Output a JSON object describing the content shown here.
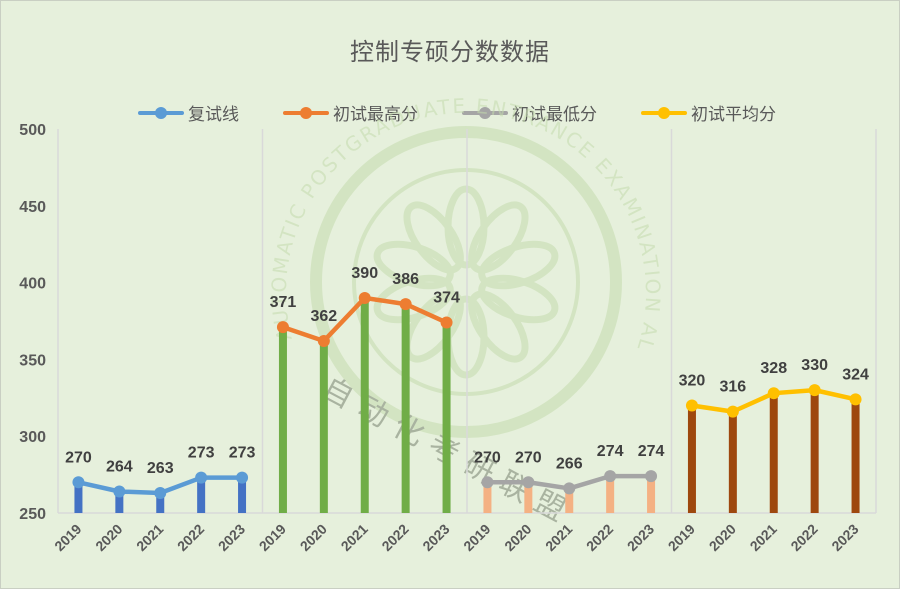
{
  "title": "控制专硕分数数据",
  "legend": [
    {
      "label": "复试线",
      "color": "#5b9bd5"
    },
    {
      "label": "初试最高分",
      "color": "#ed7d31"
    },
    {
      "label": "初试最低分",
      "color": "#a5a5a5"
    },
    {
      "label": "初试平均分",
      "color": "#ffc000"
    }
  ],
  "watermark": {
    "arc_text": "AUTOMATIC POSTGRADUATE ENTRANCE EXAMINATION ALLIANCE",
    "cn_text": "自动化考研联盟"
  },
  "chart_data": {
    "type": "line",
    "title": "控制专硕分数数据",
    "xlabel": "",
    "ylabel": "",
    "ylim": [
      250,
      500
    ],
    "yticks": [
      250,
      300,
      350,
      400,
      450,
      500
    ],
    "grid": false,
    "legend_position": "top",
    "categories": [
      "2019",
      "2020",
      "2021",
      "2022",
      "2023"
    ],
    "series": [
      {
        "name": "复试线",
        "values": [
          270,
          264,
          263,
          273,
          273
        ],
        "line_color": "#5b9bd5",
        "bar_color": "#4472c4"
      },
      {
        "name": "初试最高分",
        "values": [
          371,
          362,
          390,
          386,
          374
        ],
        "line_color": "#ed7d31",
        "bar_color": "#70ad47"
      },
      {
        "name": "初试最低分",
        "values": [
          270,
          270,
          266,
          274,
          274
        ],
        "line_color": "#a5a5a5",
        "bar_color": "#f4b183"
      },
      {
        "name": "初试平均分",
        "values": [
          320,
          316,
          328,
          330,
          324
        ],
        "line_color": "#ffc000",
        "bar_color": "#9e480e"
      }
    ]
  }
}
